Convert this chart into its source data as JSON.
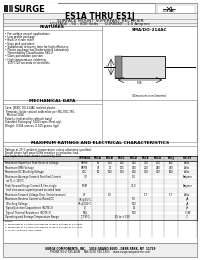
{
  "bg_color": "#ffffff",
  "page_bg": "#ffffff",
  "border_color": "#999999",
  "logo_text": "SURGE",
  "logo_prefix_color": "#333333",
  "title": "ES1A THRU ES1J",
  "subtitle1": "SURFACE MOUNT SUPERFAST RECTIFIER",
  "subtitle2": "VOLTAGE - 50 - 600 Volts     CURRENT - 1.0 Ampere",
  "features_title": "FEATURES",
  "features": [
    "• For surface mount applications",
    "• Low profile package",
    "• Built-in strain relief",
    "• Easy pick and place",
    "• Substantial recovery time for high efficiency",
    "• Plastic package has Underwriters Laboratory",
    "   Flammability Classification 94V-0",
    "• Glass passivation junction",
    "• High temperature soldering:",
    "   250°C/10 seconds at terminals"
  ],
  "mech_title": "MECHANICAL DATA",
  "mech_lines": [
    "Case: JEDEC DO-214AC molded plastic",
    "Terminals: Solder plated solderable per MIL-STD-750,",
    "  Method 2026",
    "Polarity: Indicated by cathode band",
    "Standard Packaging: 5000 tapes (Reel-qty)",
    "Weight: 0.004 ounces, 0.100 grams (typ)"
  ],
  "elec_title": "MAXIMUM RATINGS AND ELECTRICAL CHARACTERISTICS",
  "elec_note1": "Ratings at 25°C ambient temperature unless otherwise specified.",
  "elec_note2": "Single phase half wave 60Hz resistive or inductive load.",
  "elec_note3": "For capacitive load, derate current by 20%.",
  "col_headers_row1": [
    "",
    "ES1A",
    "ES1B",
    "ES1C",
    "ES1D",
    "ES1E",
    "ES1G",
    "ES1J",
    ""
  ],
  "col_headers_row2": [
    "",
    "VRRM",
    "VRMS",
    "VDC",
    "",
    "",
    "",
    "",
    "UNITS"
  ],
  "table_rows": [
    [
      "Maximum Repetitive Peak Reverse Voltage",
      "VRRM",
      "50",
      "100",
      "150",
      "200",
      "300",
      "400",
      "600",
      "Volts"
    ],
    [
      "Maximum RMS Voltage",
      "VRMS",
      "35",
      "70",
      "105",
      "140",
      "210",
      "280",
      "420",
      "Volts"
    ],
    [
      "Maximum DC Blocking Voltage",
      "VDC",
      "50",
      "100",
      "150",
      "200",
      "300",
      "400",
      "600",
      "Volts"
    ],
    [
      "Maximum Average Forward Rectified Current",
      "IO",
      "",
      "",
      "",
      "1.0",
      "",
      "",
      "",
      "Ampere"
    ],
    [
      "  at TL = 100°C",
      "",
      "",
      "",
      "",
      "",
      "",
      "",
      "",
      ""
    ],
    [
      "Peak Forward Surge Current 8.3ms single",
      "IFSM",
      "",
      "",
      "",
      "30.0",
      "",
      "",
      "",
      "Ampere"
    ],
    [
      "  half sine-wave superimposed on rated load",
      "",
      "",
      "",
      "",
      "",
      "",
      "",
      "",
      ""
    ],
    [
      "Maximum Forward Voltage Drop (Instantaneous)",
      "VF",
      "",
      "1.0",
      "",
      "",
      "1.7",
      "",
      "1.7",
      "Volts"
    ],
    [
      "Maximum Reverse Current at Rated DC",
      "IR @25°C",
      "",
      "",
      "",
      "5.0",
      "",
      "",
      "",
      "μA"
    ],
    [
      "  Blocking Voltage",
      "IR @100°C",
      "",
      "",
      "",
      "100",
      "",
      "",
      "",
      "μA"
    ],
    [
      "Typical Junction Capacitance (NOTE 2)",
      "CJ",
      "",
      "",
      "",
      "15",
      "",
      "",
      "",
      "pF"
    ],
    [
      "Typical Thermal Resistance (NOTE 3)",
      "RθJL",
      "",
      "",
      "",
      "100",
      "",
      "",
      "",
      "°C/W"
    ],
    [
      "Operating and Storage Temperature Range",
      "TJ,TSTG",
      "",
      "",
      "-55 to + 150",
      "",
      "",
      "",
      "",
      "°C"
    ]
  ],
  "notes": [
    "NOTES:",
    "1. Measured at 1.0 MHz and applied reverse voltage of 4.0 Volts.",
    "2. Measured at 1.0 MHz and applied reverse voltage of 4.0 volts.",
    "3. 0.375\" (9.5mm) lead length."
  ],
  "footer1": "SURGE COMPONENTS, INC.   1016 GRAND BLVD., DEER PARK, NY  11729",
  "footer2": "PHONE (631) 595-4646    FAX (631) 595-1453    www.surgecomponents.com"
}
